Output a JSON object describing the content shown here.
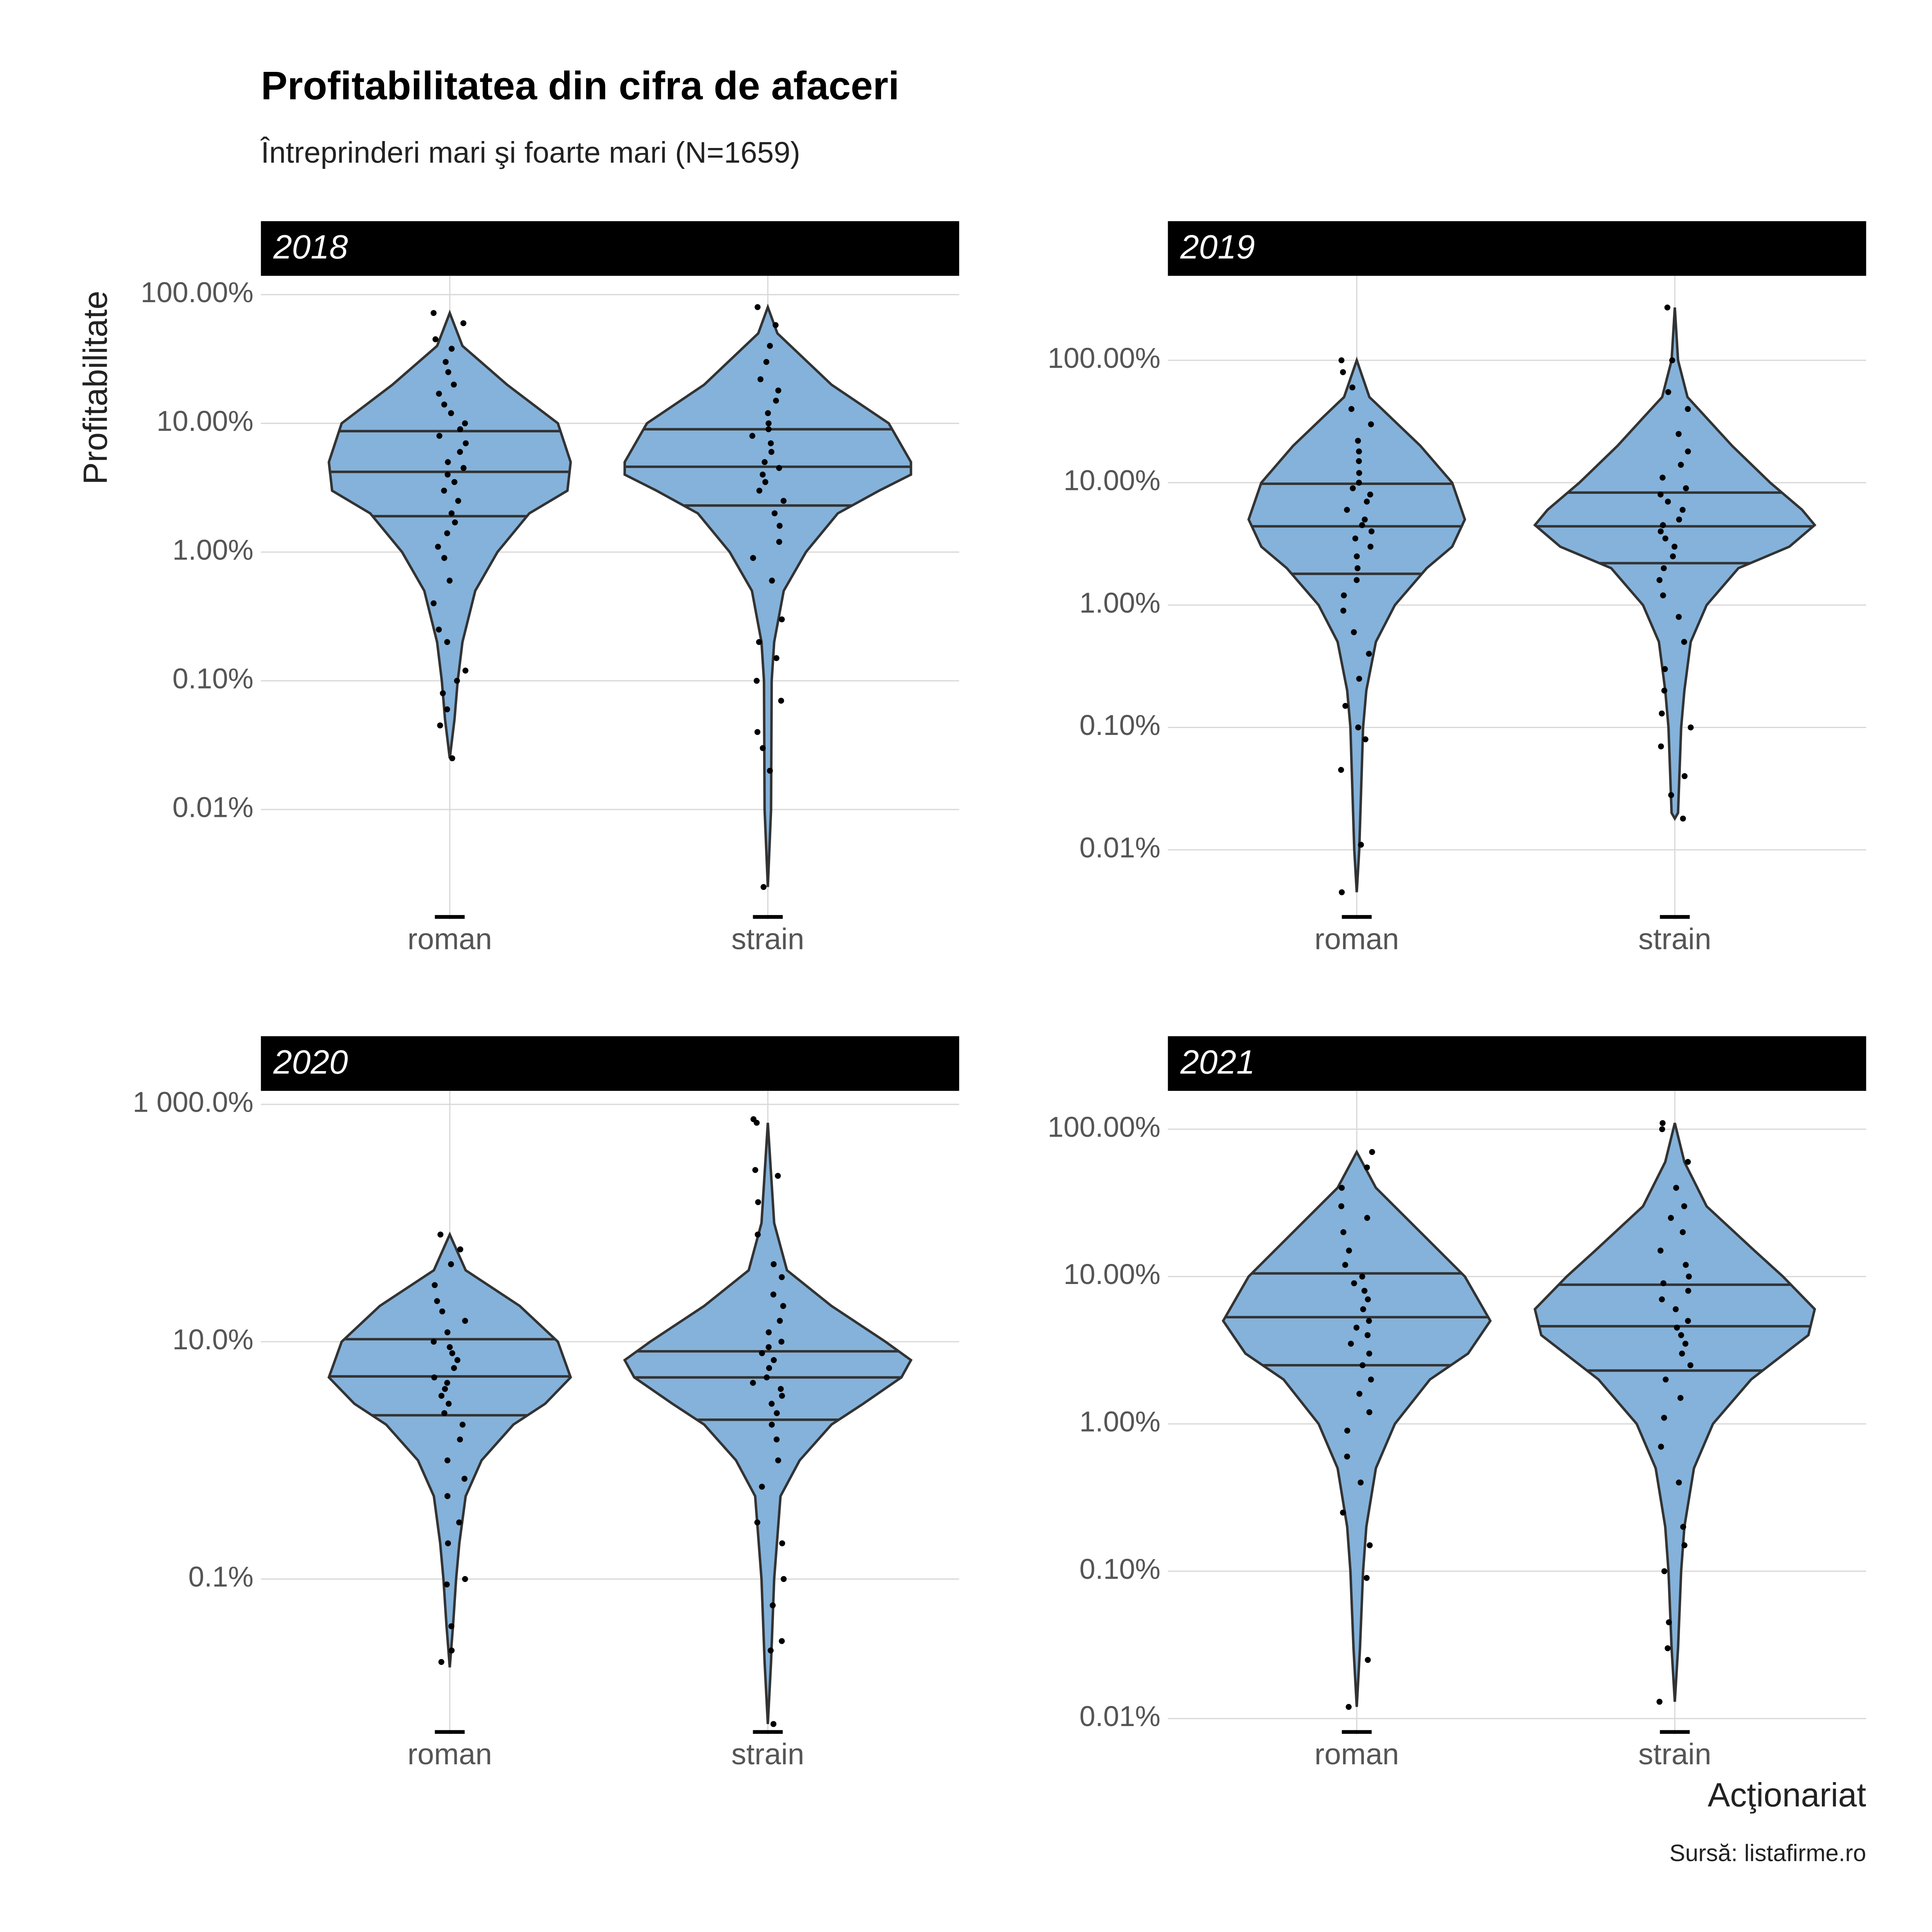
{
  "title": "Profitabilitatea din cifra de afaceri",
  "subtitle": "Întreprinderi mari şi foarte mari (N=1659)",
  "ylabel": "Profitabilitate",
  "xlabel": "Acţionariat",
  "caption": "Sursă: listafirme.ro",
  "chart_data": [
    {
      "type": "violin",
      "title": "2018",
      "categories": [
        "roman",
        "strain"
      ],
      "log_scale": true,
      "grid": true,
      "color": "#84b2da",
      "point_color": "#000000",
      "ylim": [
        0.0014,
        140
      ],
      "yticks": [
        {
          "value": 100,
          "label": "100.00%"
        },
        {
          "value": 10,
          "label": "10.00%"
        },
        {
          "value": 1,
          "label": "1.00%"
        },
        {
          "value": 0.1,
          "label": "0.10%"
        },
        {
          "value": 0.01,
          "label": "0.01%"
        }
      ],
      "quartiles": [
        [
          1.9,
          4.2,
          8.7
        ],
        [
          2.3,
          4.6,
          9
        ]
      ],
      "density_y": [
        [
          72,
          40,
          20,
          10,
          5,
          3,
          2,
          1,
          0.5,
          0.2,
          0.1,
          0.05,
          0.025
        ],
        [
          80,
          50,
          20,
          10,
          5,
          4,
          3,
          2,
          1,
          0.5,
          0.2,
          0.1,
          0.01,
          0.0025
        ]
      ],
      "density_width": [
        [
          0,
          0.04,
          0.18,
          0.34,
          0.38,
          0.37,
          0.25,
          0.15,
          0.08,
          0.04,
          0.025,
          0.015,
          0
        ],
        [
          0,
          0.03,
          0.2,
          0.38,
          0.45,
          0.45,
          0.35,
          0.22,
          0.12,
          0.05,
          0.02,
          0.012,
          0.01,
          0
        ]
      ],
      "points": [
        [
          72,
          60,
          45,
          38,
          30,
          25,
          20,
          17,
          14,
          12,
          10,
          9,
          8,
          7,
          6,
          5,
          4.5,
          4,
          3.5,
          3,
          2.5,
          2,
          1.7,
          1.4,
          1.1,
          0.9,
          0.6,
          0.4,
          0.25,
          0.2,
          0.12,
          0.1,
          0.08,
          0.06,
          0.045,
          0.025
        ],
        [
          80,
          58,
          40,
          30,
          22,
          18,
          15,
          12,
          10,
          9,
          8,
          7,
          6,
          5,
          4.5,
          4,
          3.5,
          3,
          2.5,
          2,
          1.6,
          1.2,
          0.9,
          0.6,
          0.3,
          0.2,
          0.15,
          0.1,
          0.07,
          0.04,
          0.03,
          0.02,
          0.0025
        ]
      ]
    },
    {
      "type": "violin",
      "title": "2019",
      "categories": [
        "roman",
        "strain"
      ],
      "log_scale": true,
      "grid": true,
      "color": "#84b2da",
      "point_color": "#000000",
      "ylim": [
        0.0027,
        490
      ],
      "yticks": [
        {
          "value": 100,
          "label": "100.00%"
        },
        {
          "value": 10,
          "label": "10.00%"
        },
        {
          "value": 1,
          "label": "1.00%"
        },
        {
          "value": 0.1,
          "label": "0.10%"
        },
        {
          "value": 0.01,
          "label": "0.01%"
        }
      ],
      "quartiles": [
        [
          1.8,
          4.4,
          9.8
        ],
        [
          2.2,
          4.4,
          8.3
        ]
      ],
      "density_y": [
        [
          100,
          50,
          20,
          10,
          5,
          3,
          2,
          1,
          0.5,
          0.2,
          0.1,
          0.01,
          0.0045
        ],
        [
          270,
          100,
          50,
          20,
          10,
          6,
          4.5,
          3,
          2,
          1,
          0.5,
          0.2,
          0.1,
          0.02,
          0.018
        ]
      ],
      "density_width": [
        [
          0,
          0.04,
          0.2,
          0.3,
          0.34,
          0.3,
          0.22,
          0.12,
          0.06,
          0.03,
          0.02,
          0.008,
          0
        ],
        [
          0,
          0.01,
          0.04,
          0.18,
          0.3,
          0.4,
          0.44,
          0.36,
          0.2,
          0.1,
          0.05,
          0.03,
          0.02,
          0.01,
          0
        ]
      ],
      "points": [
        [
          100,
          80,
          60,
          40,
          30,
          22,
          18,
          15,
          12,
          10,
          9,
          8,
          7,
          6,
          5,
          4.5,
          4,
          3.5,
          3,
          2.5,
          2,
          1.6,
          1.2,
          0.9,
          0.6,
          0.4,
          0.25,
          0.15,
          0.1,
          0.08,
          0.045,
          0.011,
          0.0045
        ],
        [
          270,
          100,
          55,
          40,
          25,
          18,
          14,
          11,
          9,
          8,
          7,
          6,
          5,
          4.5,
          4,
          3.5,
          3,
          2.5,
          2,
          1.6,
          1.2,
          0.8,
          0.5,
          0.3,
          0.2,
          0.13,
          0.1,
          0.07,
          0.04,
          0.028,
          0.018
        ]
      ]
    },
    {
      "type": "violin",
      "title": "2020",
      "categories": [
        "roman",
        "strain"
      ],
      "log_scale": true,
      "grid": true,
      "color": "#84b2da",
      "point_color": "#000000",
      "ylim": [
        0.0049,
        1300
      ],
      "yticks": [
        {
          "value": 1000,
          "label": "1 000.0%"
        },
        {
          "value": 10,
          "label": "10.0%"
        },
        {
          "value": 0.1,
          "label": "0.1%"
        }
      ],
      "quartiles": [
        [
          2.4,
          5.1,
          10.5
        ],
        [
          2.2,
          5,
          8.3
        ]
      ],
      "density_y": [
        [
          80,
          40,
          20,
          10,
          5,
          3,
          2,
          1,
          0.5,
          0.2,
          0.1,
          0.04,
          0.018
        ],
        [
          700,
          100,
          40,
          20,
          10,
          7,
          5,
          3,
          2,
          1,
          0.5,
          0.1,
          0.02,
          0.006
        ]
      ],
      "density_width": [
        [
          0,
          0.05,
          0.22,
          0.34,
          0.38,
          0.3,
          0.2,
          0.1,
          0.05,
          0.03,
          0.02,
          0.01,
          0
        ],
        [
          0,
          0.02,
          0.06,
          0.2,
          0.37,
          0.45,
          0.42,
          0.3,
          0.2,
          0.1,
          0.04,
          0.02,
          0.01,
          0
        ]
      ],
      "points": [
        [
          80,
          60,
          45,
          30,
          22,
          18,
          15,
          12,
          10,
          9,
          8,
          7,
          6,
          5,
          4.5,
          4,
          3.5,
          3,
          2.5,
          2,
          1.5,
          1,
          0.7,
          0.5,
          0.3,
          0.2,
          0.1,
          0.09,
          0.04,
          0.025,
          0.02
        ],
        [
          750,
          700,
          280,
          250,
          150,
          80,
          45,
          35,
          25,
          20,
          15,
          12,
          10,
          9,
          8,
          7,
          6,
          5,
          4.5,
          4,
          3.5,
          3,
          2.5,
          2,
          1.5,
          1,
          0.6,
          0.3,
          0.2,
          0.1,
          0.06,
          0.03,
          0.025,
          0.006
        ]
      ]
    },
    {
      "type": "violin",
      "title": "2021",
      "categories": [
        "roman",
        "strain"
      ],
      "log_scale": true,
      "grid": true,
      "color": "#84b2da",
      "point_color": "#000000",
      "ylim": [
        0.0078,
        182
      ],
      "yticks": [
        {
          "value": 100,
          "label": "100.00%"
        },
        {
          "value": 10,
          "label": "10.00%"
        },
        {
          "value": 1,
          "label": "1.00%"
        },
        {
          "value": 0.1,
          "label": "0.10%"
        },
        {
          "value": 0.01,
          "label": "0.01%"
        }
      ],
      "quartiles": [
        [
          2.5,
          5.3,
          10.5
        ],
        [
          2.3,
          4.6,
          8.8
        ]
      ],
      "density_y": [
        [
          70,
          40,
          20,
          10,
          5,
          3,
          2,
          1,
          0.5,
          0.2,
          0.1,
          0.03,
          0.012
        ],
        [
          110,
          60,
          30,
          15,
          10,
          6,
          4,
          2,
          1,
          0.5,
          0.2,
          0.1,
          0.03,
          0.013
        ]
      ],
      "density_width": [
        [
          0,
          0.06,
          0.2,
          0.34,
          0.42,
          0.35,
          0.23,
          0.12,
          0.06,
          0.03,
          0.02,
          0.01,
          0
        ],
        [
          0,
          0.03,
          0.1,
          0.25,
          0.34,
          0.44,
          0.42,
          0.24,
          0.12,
          0.06,
          0.03,
          0.02,
          0.01,
          0
        ]
      ],
      "points": [
        [
          70,
          55,
          40,
          30,
          25,
          20,
          15,
          12,
          10,
          9,
          8,
          7,
          6,
          5,
          4.5,
          4,
          3.5,
          3,
          2.5,
          2,
          1.6,
          1.2,
          0.9,
          0.6,
          0.4,
          0.25,
          0.15,
          0.09,
          0.025,
          0.012
        ],
        [
          110,
          100,
          60,
          40,
          30,
          25,
          20,
          15,
          12,
          10,
          9,
          8,
          7,
          6,
          5,
          4.5,
          4,
          3.5,
          3,
          2.5,
          2,
          1.5,
          1.1,
          0.7,
          0.4,
          0.2,
          0.15,
          0.1,
          0.045,
          0.03,
          0.013
        ]
      ]
    }
  ]
}
